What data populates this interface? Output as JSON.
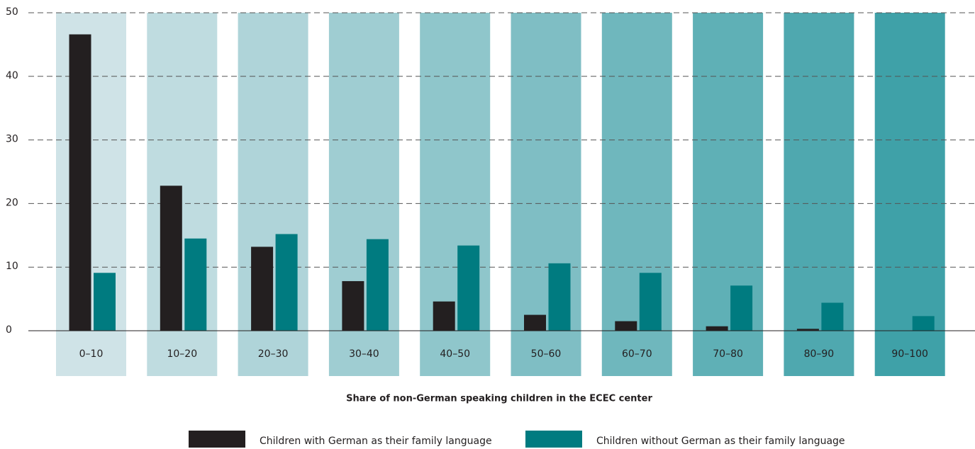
{
  "chart_data": {
    "type": "bar",
    "x_label": "Share of non-German speaking children in the ECEC center",
    "categories": [
      "0–10",
      "10–20",
      "20–30",
      "30–40",
      "40–50",
      "50–60",
      "60–70",
      "70–80",
      "80–90",
      "90–100"
    ],
    "series": [
      {
        "name": "Children with German as their family language",
        "color": "#231f20",
        "values": [
          46.6,
          22.8,
          13.2,
          7.8,
          4.6,
          2.5,
          1.5,
          0.7,
          0.3,
          0
        ]
      },
      {
        "name": "Children without German as their family language",
        "color": "#007b80",
        "values": [
          9.1,
          14.5,
          15.2,
          14.4,
          13.4,
          10.6,
          9.1,
          7.1,
          4.4,
          2.3
        ]
      }
    ],
    "ylim": [
      0,
      50
    ],
    "yticks": [
      0,
      10,
      20,
      30,
      40,
      50
    ],
    "grid": true
  }
}
